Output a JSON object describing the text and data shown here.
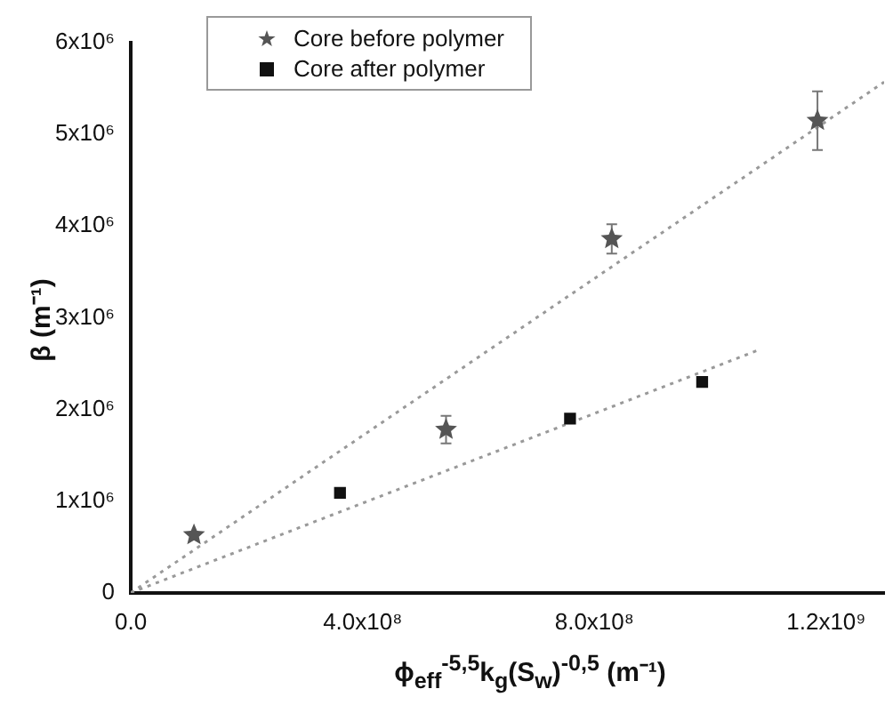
{
  "chart_data": {
    "type": "scatter",
    "xlabel": "ϕ$_{eff}$$^{-5,5}$k$_{g}$(S$_{w}$)$^{-0,5}$ (m⁻¹)",
    "ylabel": "β (m⁻¹)",
    "xlim": [
      0,
      1300000000
    ],
    "xticks": [
      {
        "value": 0,
        "label": "0.0"
      },
      {
        "value": 400000000,
        "label": "4.0x10⁸"
      },
      {
        "value": 800000000,
        "label": "8.0x10⁸"
      },
      {
        "value": 1200000000,
        "label": "1.2x10⁹"
      }
    ],
    "ylim": [
      0,
      6000000
    ],
    "yticks": [
      {
        "value": 0,
        "label": "0"
      },
      {
        "value": 1000000,
        "label": "1x10⁶"
      },
      {
        "value": 2000000,
        "label": "2x10⁶"
      },
      {
        "value": 3000000,
        "label": "3x10⁶"
      },
      {
        "value": 4000000,
        "label": "4x10⁶"
      },
      {
        "value": 5000000,
        "label": "5x10⁶"
      },
      {
        "value": 6000000,
        "label": "6x10⁶"
      }
    ],
    "grid": false,
    "legend": "top left",
    "series": [
      {
        "name": "Core before polymer",
        "color": "#555555",
        "marker": "star",
        "x": [
          109000000,
          544000000,
          830000000,
          1185000000
        ],
        "values": [
          630000,
          1780000,
          3860000,
          5150000
        ],
        "errors": [
          null,
          150000,
          160000,
          320000
        ]
      },
      {
        "name": "Core after polymer",
        "color": "#111111",
        "marker": "square",
        "x": [
          361000000,
          758000000,
          986000000
        ],
        "values": [
          1090000,
          1900000,
          2300000
        ]
      },
      {
        "type": "line",
        "color": "#999999",
        "marker": "none",
        "line_style": "dotted",
        "x": [
          0,
          1300000000
        ],
        "values": [
          0,
          5570000
        ]
      },
      {
        "type": "line",
        "color": "#999999",
        "marker": "none",
        "line_style": "dotted",
        "x": [
          0,
          1080000000
        ],
        "values": [
          0,
          2640000
        ]
      }
    ]
  }
}
